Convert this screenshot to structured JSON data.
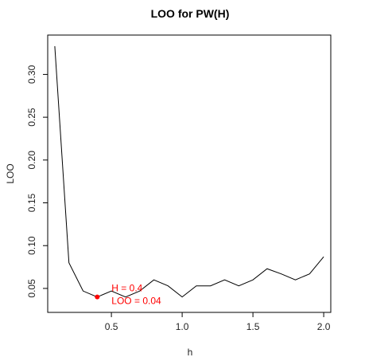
{
  "chart_data": {
    "type": "line",
    "title": "LOO for PW(H)",
    "xlabel": "h",
    "ylabel": "LOO",
    "xlim": [
      0.05,
      2.05
    ],
    "ylim": [
      0.022,
      0.346
    ],
    "xticks": [
      0.5,
      1.0,
      1.5,
      2.0
    ],
    "xtick_labels": [
      "0.5",
      "1.0",
      "1.5",
      "2.0"
    ],
    "yticks": [
      0.05,
      0.1,
      0.15,
      0.2,
      0.25,
      0.3
    ],
    "ytick_labels": [
      "0.05",
      "0.10",
      "0.15",
      "0.20",
      "0.25",
      "0.30"
    ],
    "grid": false,
    "series": [
      {
        "x": [
          0.1,
          0.2,
          0.3,
          0.4,
          0.5,
          0.6,
          0.7,
          0.8,
          0.9,
          1.0,
          1.1,
          1.2,
          1.3,
          1.4,
          1.5,
          1.6,
          1.7,
          1.8,
          1.9,
          2.0
        ],
        "y": [
          0.333,
          0.08,
          0.047,
          0.04,
          0.047,
          0.04,
          0.047,
          0.06,
          0.053,
          0.04,
          0.053,
          0.053,
          0.06,
          0.053,
          0.06,
          0.073,
          0.067,
          0.06,
          0.067,
          0.087
        ],
        "color": "#000000"
      }
    ],
    "highlight_point": {
      "x": 0.4,
      "y": 0.04,
      "color": "#ff0000"
    },
    "annotations": [
      "H = 0.4",
      "LOO = 0.04"
    ],
    "annotation_color": "#ff0000"
  }
}
